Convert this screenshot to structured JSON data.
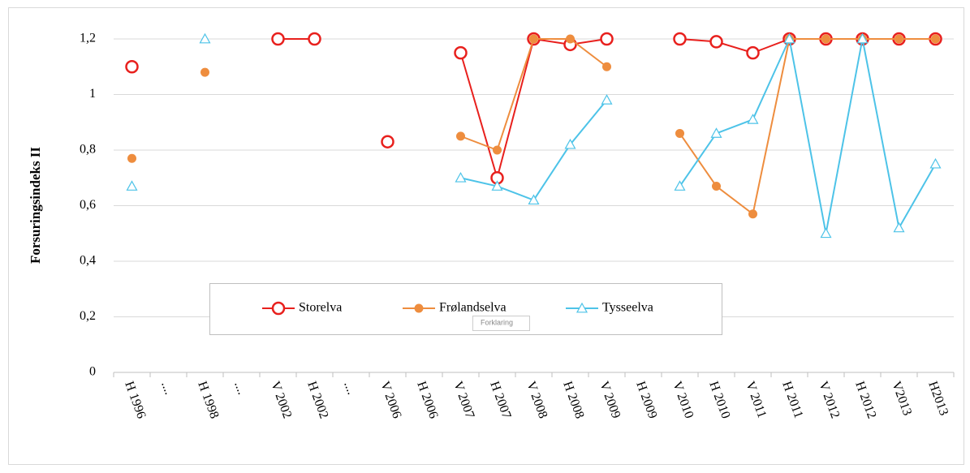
{
  "chart_data": {
    "type": "line",
    "y_label": "Forsuringsindeks  II",
    "tooltip": "Forklaring",
    "categories": [
      "H 1996",
      "....",
      "H 1998",
      "....",
      "V 2002",
      "H 2002",
      "....",
      "V 2006",
      "H 2006",
      "V 2007",
      "H 2007",
      "V 2008",
      "H 2008",
      "V 2009",
      "H 2009",
      "V 2010",
      "H 2010",
      "V 2011",
      "H 2011",
      "V 2012",
      "H 2012",
      "V2013",
      "H2013"
    ],
    "series": [
      {
        "name": "Storelva",
        "color": "#e8201d",
        "marker": "open-circle",
        "values": [
          1.1,
          null,
          null,
          null,
          1.2,
          1.2,
          null,
          0.83,
          null,
          1.15,
          0.7,
          1.2,
          1.18,
          1.2,
          null,
          1.2,
          1.19,
          1.15,
          1.2,
          1.2,
          1.2,
          1.2,
          1.2
        ]
      },
      {
        "name": "Frølandselva",
        "color": "#ee8d3e",
        "marker": "filled-circle",
        "values": [
          0.77,
          null,
          1.08,
          null,
          null,
          null,
          null,
          null,
          null,
          0.85,
          0.8,
          1.2,
          1.2,
          1.1,
          null,
          0.86,
          0.67,
          0.57,
          1.2,
          1.2,
          1.2,
          1.2,
          1.2
        ]
      },
      {
        "name": "Tysseelva",
        "color": "#4dc3e8",
        "marker": "open-triangle",
        "values": [
          0.67,
          null,
          1.2,
          null,
          null,
          null,
          null,
          null,
          null,
          0.7,
          0.67,
          0.62,
          0.82,
          0.98,
          null,
          0.67,
          0.86,
          0.91,
          1.2,
          0.5,
          1.2,
          0.52,
          0.75
        ]
      }
    ],
    "ylim": [
      0,
      1.2
    ],
    "yticks": [
      0,
      {
        "value": 0.2,
        "label": "0,2"
      },
      {
        "value": 0.4,
        "label": "0,4"
      },
      {
        "value": 0.6,
        "label": "0,6"
      },
      {
        "value": 0.8,
        "label": "0,8"
      },
      1,
      {
        "value": 1.2,
        "label": "1,2"
      }
    ],
    "grid": true
  }
}
